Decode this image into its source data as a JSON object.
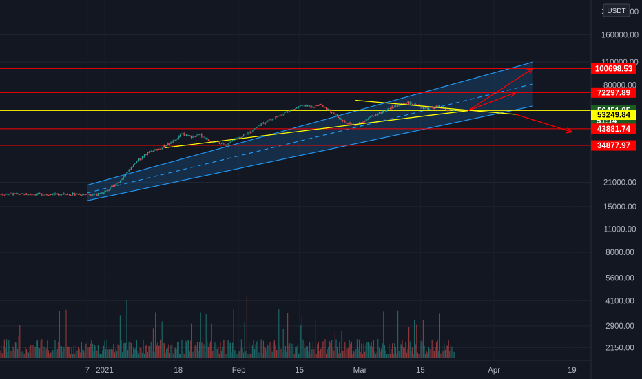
{
  "chart_data": {
    "type": "candlestick",
    "currency": "USDT",
    "y_scale": "log",
    "ylim": [
      2000,
      240000
    ],
    "y_ticks": [
      "160000.00",
      "110000.00",
      "80000.00",
      "21000.00",
      "15000.00",
      "11000.00",
      "8000.00",
      "5600.00",
      "4100.00",
      "2900.00",
      "2150.00"
    ],
    "y_top_partial": "220000.00",
    "x_ticks": [
      "7",
      "2021",
      "18",
      "Feb",
      "15",
      "Mar",
      "15",
      "Apr",
      "19"
    ],
    "price_tags": [
      {
        "value": "100698.53",
        "bg": "#ff0000",
        "fg": "#ffffff"
      },
      {
        "value": "72297.89",
        "bg": "#ff0000",
        "fg": "#ffffff"
      },
      {
        "value": "56451.85",
        "sub": "51:14",
        "bg": "#1b5e20",
        "fg": "#ffffff"
      },
      {
        "value": "53249.84",
        "bg": "#ffff00",
        "fg": "#000000"
      },
      {
        "value": "43881.74",
        "bg": "#ff0000",
        "fg": "#ffffff"
      },
      {
        "value": "34877.97",
        "bg": "#ff0000",
        "fg": "#ffffff"
      }
    ],
    "horizontal_levels": [
      {
        "value": 100698.53,
        "color": "#ff0000"
      },
      {
        "value": 72297.89,
        "color": "#ff0000"
      },
      {
        "value": 56451.85,
        "color": "#ffff00"
      },
      {
        "value": 43881.74,
        "color": "#ff0000"
      },
      {
        "value": 34877.97,
        "color": "#ff0000"
      }
    ],
    "price_path": [
      [
        "2020-12-31",
        17800
      ],
      [
        "2021-01-02",
        19000
      ],
      [
        "2021-01-05",
        22000
      ],
      [
        "2021-01-08",
        27500
      ],
      [
        "2021-01-11",
        31500
      ],
      [
        "2021-01-14",
        33800
      ],
      [
        "2021-01-17",
        37000
      ],
      [
        "2021-01-19",
        41000
      ],
      [
        "2021-01-21",
        39000
      ],
      [
        "2021-01-23",
        40500
      ],
      [
        "2021-01-25",
        37500
      ],
      [
        "2021-01-27",
        36500
      ],
      [
        "2021-01-29",
        35200
      ],
      [
        "2021-01-31",
        37800
      ],
      [
        "2021-02-02",
        40000
      ],
      [
        "2021-02-04",
        42500
      ],
      [
        "2021-02-06",
        46500
      ],
      [
        "2021-02-08",
        49500
      ],
      [
        "2021-02-10",
        52000
      ],
      [
        "2021-02-12",
        55500
      ],
      [
        "2021-02-14",
        58000
      ],
      [
        "2021-02-16",
        60500
      ],
      [
        "2021-02-18",
        59000
      ],
      [
        "2021-02-20",
        61000
      ],
      [
        "2021-02-22",
        56000
      ],
      [
        "2021-02-24",
        51500
      ],
      [
        "2021-02-26",
        47500
      ],
      [
        "2021-02-28",
        46000
      ],
      [
        "2021-03-02",
        49000
      ],
      [
        "2021-03-04",
        52500
      ],
      [
        "2021-03-06",
        55000
      ],
      [
        "2021-03-08",
        58500
      ],
      [
        "2021-03-10",
        60500
      ],
      [
        "2021-03-12",
        63500
      ],
      [
        "2021-03-13",
        61500
      ],
      [
        "2021-03-15",
        59000
      ],
      [
        "2021-03-17",
        58000
      ],
      [
        "2021-03-19",
        59500
      ],
      [
        "2021-03-21",
        57000
      ],
      [
        "2021-03-23",
        56451.85
      ]
    ],
    "channel": {
      "start": [
        "2020-12-28",
        20200
      ],
      "end": [
        "2021-04-10",
        110000
      ],
      "lower_start": [
        "2020-12-28",
        16300
      ],
      "lower_end": [
        "2021-04-10",
        60000
      ],
      "color": "#2196f3",
      "fill": "rgba(33,150,243,0.18)"
    },
    "trend_lines": [
      {
        "from": [
          "2021-01-15",
          33800
        ],
        "to": [
          "2021-03-26",
          56300
        ],
        "color": "#ffff00"
      },
      {
        "from": [
          "2021-02-28",
          65000
        ],
        "to": [
          "2021-04-06",
          53500
        ],
        "color": "#ffff00"
      }
    ],
    "arrows": [
      {
        "from": [
          "2021-03-26",
          56300
        ],
        "to": [
          "2021-04-10",
          100698.53
        ],
        "color": "#ff0000"
      },
      {
        "from": [
          "2021-03-26",
          56300
        ],
        "to": [
          "2021-04-06",
          72297.89
        ],
        "color": "#ff0000"
      },
      {
        "from": [
          "2021-04-06",
          53500
        ],
        "to": [
          "2021-04-19",
          42000
        ],
        "color": "#ff0000"
      }
    ],
    "volume_color_up": "#26a69a",
    "volume_color_down": "#ef5350"
  }
}
